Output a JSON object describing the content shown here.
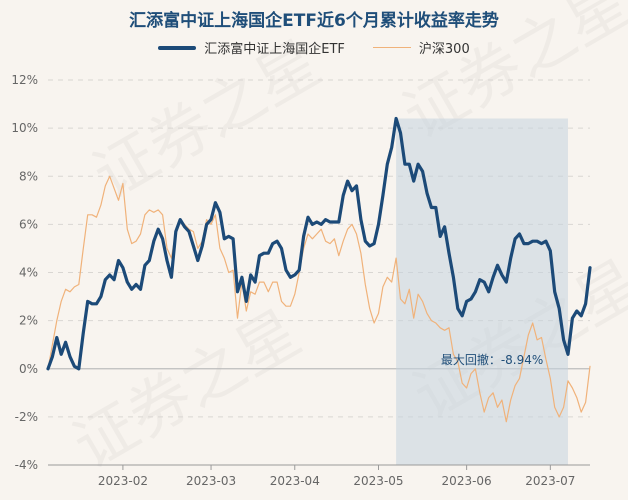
{
  "chart_data": {
    "type": "line",
    "title": "汇添富中证上海国企ETF近6个月累计收益率走势",
    "legend_position": "top-center",
    "grid": true,
    "ylim": [
      -4,
      12
    ],
    "y_ticks": [
      -4,
      -2,
      0,
      2,
      4,
      6,
      8,
      10,
      12
    ],
    "y_tick_labels": [
      "-4%",
      "-2%",
      "0%",
      "2%",
      "4%",
      "6%",
      "8%",
      "10%",
      "12%"
    ],
    "x_ticks": [
      17,
      37,
      56,
      75,
      95,
      114
    ],
    "x_tick_labels": [
      "2023-02",
      "2023-03",
      "2023-04",
      "2023-05",
      "2023-06",
      "2023-07"
    ],
    "series": [
      {
        "name": "汇添富中证上海国企ETF",
        "color": "#1c4a78",
        "values": [
          0.0,
          0.5,
          1.3,
          0.6,
          1.1,
          0.5,
          0.1,
          0.0,
          1.5,
          2.8,
          2.7,
          2.7,
          3.0,
          3.7,
          3.9,
          3.7,
          4.5,
          4.2,
          3.6,
          3.3,
          3.5,
          3.3,
          4.3,
          4.5,
          5.3,
          5.8,
          5.4,
          4.5,
          3.8,
          5.7,
          6.2,
          5.9,
          5.7,
          5.1,
          4.5,
          5.1,
          6.0,
          6.2,
          6.9,
          6.5,
          5.4,
          5.5,
          5.4,
          3.2,
          3.8,
          2.8,
          3.9,
          3.6,
          4.7,
          4.8,
          4.8,
          5.2,
          5.3,
          5.0,
          4.1,
          3.8,
          3.9,
          4.1,
          5.5,
          6.3,
          6.0,
          6.1,
          6.0,
          6.2,
          6.1,
          6.1,
          6.1,
          7.2,
          7.8,
          7.4,
          7.6,
          6.2,
          5.3,
          5.1,
          5.2,
          6.0,
          7.2,
          8.5,
          9.2,
          10.4,
          9.8,
          8.5,
          8.5,
          7.8,
          8.5,
          8.2,
          7.3,
          6.7,
          6.7,
          5.5,
          5.9,
          4.8,
          3.8,
          2.5,
          2.2,
          2.8,
          2.9,
          3.2,
          3.7,
          3.6,
          3.2,
          3.8,
          4.3,
          3.9,
          3.6,
          4.6,
          5.4,
          5.6,
          5.2,
          5.2,
          5.3,
          5.3,
          5.2,
          5.3,
          4.9,
          3.2,
          2.5,
          1.2,
          0.6,
          2.1,
          2.4,
          2.2,
          2.7,
          4.2
        ]
      },
      {
        "name": "沪深300",
        "color": "#f0b27a",
        "values": [
          0.0,
          1.0,
          2.0,
          2.8,
          3.3,
          3.2,
          3.4,
          3.5,
          5.0,
          6.4,
          6.4,
          6.3,
          6.8,
          7.6,
          8.0,
          7.5,
          7.0,
          7.7,
          5.8,
          5.2,
          5.3,
          5.6,
          6.4,
          6.6,
          6.5,
          6.6,
          6.4,
          5.0,
          4.6,
          5.7,
          6.2,
          6.0,
          5.8,
          5.7,
          5.0,
          5.3,
          6.2,
          6.0,
          6.4,
          5.0,
          4.6,
          4.0,
          4.1,
          2.1,
          3.6,
          2.4,
          3.2,
          3.1,
          3.6,
          3.6,
          3.2,
          3.6,
          3.6,
          2.8,
          2.6,
          2.6,
          3.1,
          4.0,
          5.0,
          5.6,
          5.4,
          5.6,
          5.8,
          5.3,
          5.2,
          5.4,
          4.7,
          5.3,
          5.8,
          6.0,
          5.6,
          4.8,
          3.5,
          2.5,
          1.9,
          2.3,
          3.4,
          3.8,
          3.6,
          4.6,
          2.9,
          2.7,
          3.3,
          2.1,
          3.1,
          2.8,
          2.3,
          2.0,
          1.9,
          1.7,
          1.6,
          1.7,
          0.6,
          0.3,
          -0.6,
          -0.8,
          -0.2,
          0.0,
          -1.0,
          -1.8,
          -1.2,
          -1.0,
          -1.6,
          -1.3,
          -2.2,
          -1.3,
          -0.7,
          -0.4,
          0.5,
          1.4,
          1.9,
          1.2,
          1.3,
          0.4,
          -0.4,
          -1.6,
          -2.0,
          -1.6,
          -0.5,
          -0.8,
          -1.2,
          -1.8,
          -1.4,
          0.1
        ]
      }
    ],
    "max_drawdown": {
      "label": "最大回撤：-8.94%",
      "start_index": 79,
      "end_index": 118,
      "fill_color": "#c5d3df"
    }
  }
}
